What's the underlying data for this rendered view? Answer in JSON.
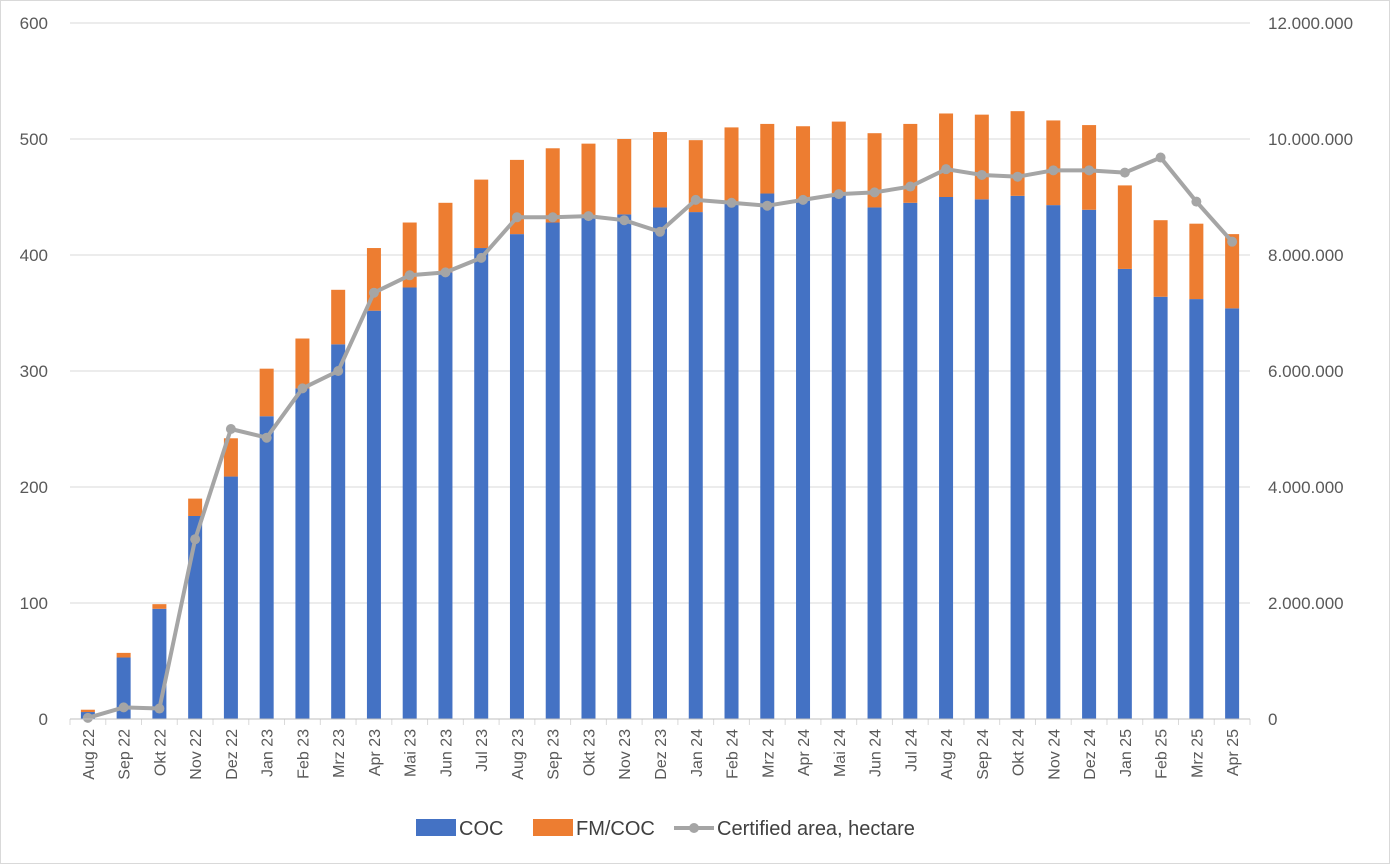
{
  "chart_data": {
    "type": "bar",
    "stacked": true,
    "categories": [
      "Aug 22",
      "Sep 22",
      "Okt 22",
      "Nov 22",
      "Dez 22",
      "Jan 23",
      "Feb 23",
      "Mrz 23",
      "Apr 23",
      "Mai 23",
      "Jun 23",
      "Jul 23",
      "Aug 23",
      "Sep 23",
      "Okt 23",
      "Nov 23",
      "Dez 23",
      "Jan 24",
      "Feb 24",
      "Mrz 24",
      "Apr 24",
      "Mai 24",
      "Jun 24",
      "Jul 24",
      "Aug 24",
      "Sep 24",
      "Okt 24",
      "Nov 24",
      "Dez 24",
      "Jan 25",
      "Feb 25",
      "Mrz 25",
      "Apr 25"
    ],
    "series": [
      {
        "name": "COC",
        "kind": "bar",
        "axis": "left",
        "color": "#4472c4",
        "values": [
          6,
          53,
          95,
          175,
          209,
          261,
          285,
          323,
          352,
          372,
          385,
          406,
          418,
          428,
          432,
          435,
          441,
          437,
          446,
          453,
          447,
          452,
          441,
          445,
          450,
          448,
          451,
          443,
          439,
          388,
          364,
          362,
          354
        ]
      },
      {
        "name": "FM/COC",
        "kind": "bar",
        "axis": "left",
        "color": "#ed7d31",
        "values": [
          2,
          4,
          4,
          15,
          33,
          41,
          43,
          47,
          54,
          56,
          60,
          59,
          64,
          64,
          64,
          65,
          65,
          62,
          64,
          60,
          64,
          63,
          64,
          68,
          72,
          73,
          73,
          73,
          73,
          72,
          66,
          65,
          64
        ]
      },
      {
        "name": "Certified area, hectare",
        "kind": "line",
        "axis": "right",
        "color": "#a5a5a5",
        "values": [
          20000,
          200000,
          180000,
          3100000,
          5000000,
          4850000,
          5700000,
          6000000,
          7350000,
          7650000,
          7700000,
          7950000,
          8650000,
          8650000,
          8670000,
          8600000,
          8400000,
          8950000,
          8900000,
          8850000,
          8950000,
          9050000,
          9080000,
          9180000,
          9480000,
          9380000,
          9350000,
          9460000,
          9460000,
          9420000,
          9680000,
          8920000,
          8230000
        ]
      }
    ],
    "left_axis": {
      "min": 0,
      "max": 600,
      "ticks": [
        "0",
        "100",
        "200",
        "300",
        "400",
        "500",
        "600"
      ]
    },
    "right_axis": {
      "min": 0,
      "max": 12000000,
      "ticks": [
        "0",
        "2.000.000",
        "4.000.000",
        "6.000.000",
        "8.000.000",
        "10.000.000",
        "12.000.000"
      ]
    },
    "grid": true,
    "legend_position": "bottom",
    "title": "",
    "xlabel": "",
    "ylabel": ""
  },
  "legend": {
    "items": [
      {
        "label": "COC",
        "color": "#4472c4",
        "kind": "bar"
      },
      {
        "label": "FM/COC",
        "color": "#ed7d31",
        "kind": "bar"
      },
      {
        "label": "Certified area, hectare",
        "color": "#a5a5a5",
        "kind": "line"
      }
    ]
  },
  "colors": {
    "grid": "#d9d9d9",
    "axis_text": "#595959"
  }
}
